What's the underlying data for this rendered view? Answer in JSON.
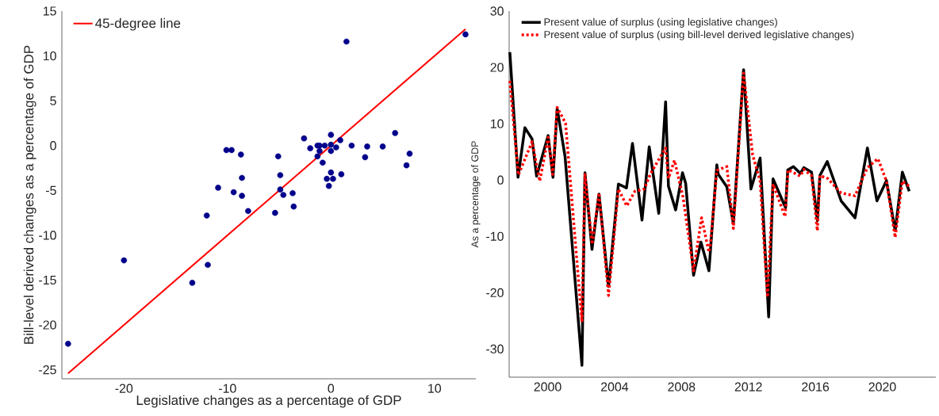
{
  "chart_data": [
    {
      "type": "scatter",
      "xlabel": "Legislative changes as a percentage of GDP",
      "ylabel": "Bill-level derived changes as a percentage of GDP",
      "xlim": [
        -26,
        14
      ],
      "ylim": [
        -26,
        15
      ],
      "xticks": [
        -20,
        -10,
        0,
        10
      ],
      "yticks": [
        -25,
        -20,
        -15,
        -10,
        -5,
        0,
        5,
        10,
        15
      ],
      "legend": "top left",
      "series": [
        {
          "type": "scatter",
          "color": "#00008b",
          "x": [
            1.5,
            13.0,
            -2.6,
            0.0,
            0.9,
            -1.3,
            -1.1,
            -0.6,
            0.0,
            0.5,
            -2.0,
            -1.1,
            0.0,
            2.0,
            3.5,
            5.0,
            6.2,
            3.3,
            7.6,
            7.3,
            -1.3,
            -0.8,
            0.0,
            -0.4,
            0.2,
            1.0,
            -0.2,
            -10.1,
            -9.6,
            -8.7,
            -5.1,
            -8.6,
            -4.9,
            -10.9,
            -9.4,
            -8.6,
            -4.9,
            -4.6,
            -3.7,
            -3.6,
            -8.0,
            -5.4,
            -12.0,
            -20.0,
            -11.9,
            -13.4,
            -25.4
          ],
          "values": [
            11.6,
            12.4,
            0.8,
            1.2,
            0.6,
            0.0,
            0.0,
            0.0,
            0.1,
            -0.2,
            -0.3,
            -0.6,
            -0.6,
            0.0,
            -0.1,
            -0.1,
            1.4,
            -1.3,
            -0.9,
            -2.2,
            -1.2,
            -1.9,
            -3.0,
            -3.7,
            -3.7,
            -3.2,
            -4.5,
            -0.5,
            -0.5,
            -1.0,
            -1.2,
            -3.6,
            -3.3,
            -4.7,
            -5.2,
            -5.6,
            -4.9,
            -5.5,
            -5.3,
            -6.8,
            -7.3,
            -7.5,
            -7.8,
            -12.8,
            -13.3,
            -15.3,
            -22.1
          ]
        },
        {
          "type": "line",
          "name": "45-degree line",
          "color": "#ff0000",
          "line_style": "solid",
          "x": [
            -25.4,
            13.0
          ],
          "values": [
            -25.4,
            13.0
          ]
        }
      ]
    },
    {
      "type": "line",
      "ylabel": "As a percentage of GDP",
      "xlim": [
        1997.7,
        2023.2
      ],
      "ylim": [
        -35,
        30
      ],
      "xticks": [
        2000,
        2004,
        2008,
        2012,
        2016,
        2020
      ],
      "yticks": [
        -30,
        -20,
        -10,
        0,
        10,
        20,
        30
      ],
      "legend": "top left",
      "series": [
        {
          "name": "Present value of surplus (using legislative changes)",
          "color": "#000000",
          "line_style": "solid",
          "x": [
            1997.74,
            1998.23,
            1998.64,
            1999.07,
            1999.34,
            2000.03,
            2000.32,
            2000.57,
            2001.04,
            2002.05,
            2002.23,
            2002.65,
            2003.07,
            2003.64,
            2004.23,
            2004.71,
            2005.07,
            2005.64,
            2006.07,
            2006.64,
            2007.05,
            2007.22,
            2007.65,
            2008.06,
            2008.25,
            2008.72,
            2009.16,
            2009.64,
            2010.11,
            2010.2,
            2010.71,
            2011.1,
            2011.71,
            2012.15,
            2012.7,
            2013.21,
            2013.47,
            2014.22,
            2014.35,
            2014.69,
            2015.1,
            2015.31,
            2015.77,
            2016.12,
            2016.27,
            2016.71,
            2017.54,
            2018.37,
            2019.11,
            2019.68,
            2020.25,
            2020.77,
            2021.2,
            2021.61
          ],
          "values": [
            22.7,
            0.5,
            9.3,
            7.3,
            0.7,
            7.9,
            0.5,
            12.7,
            4.2,
            -32.9,
            1.3,
            -12.3,
            -2.5,
            -18.9,
            -0.7,
            -1.4,
            6.5,
            -7.1,
            5.9,
            -5.9,
            13.9,
            -1.1,
            -5.3,
            1.3,
            -0.6,
            -16.9,
            -11.0,
            -16.1,
            2.7,
            1.0,
            -1.2,
            -7.7,
            19.6,
            -1.6,
            3.9,
            -24.3,
            0.2,
            -4.9,
            1.8,
            2.4,
            1.2,
            2.2,
            1.4,
            -7.2,
            0.8,
            3.3,
            -3.7,
            -6.7,
            5.7,
            -3.7,
            -0.1,
            -9.0,
            1.4,
            -2.0
          ]
        },
        {
          "name": "Present value of surplus (using bill-level derived legislative changes)",
          "color": "#ff0000",
          "line_style": "dotted",
          "x": [
            1997.74,
            1998.25,
            1999.07,
            1999.53,
            2000.03,
            2000.3,
            2000.57,
            2001.07,
            2002.05,
            2002.23,
            2002.66,
            2003.07,
            2003.64,
            2004.23,
            2004.73,
            2005.21,
            2005.77,
            2006.16,
            2007.05,
            2007.22,
            2007.58,
            2008.09,
            2008.72,
            2009.2,
            2009.64,
            2009.72,
            2010.11,
            2010.71,
            2011.1,
            2011.71,
            2012.25,
            2012.7,
            2013.14,
            2013.47,
            2014.19,
            2014.37,
            2015.1,
            2015.31,
            2015.77,
            2016.12,
            2016.27,
            2016.73,
            2017.54,
            2018.37,
            2019.11,
            2019.74,
            2020.25,
            2020.77,
            2021.2,
            2021.61
          ],
          "values": [
            17.6,
            0.9,
            6.8,
            -0.2,
            7.6,
            1.0,
            12.9,
            10.1,
            -25.2,
            1.0,
            -11.4,
            -2.3,
            -20.5,
            -1.6,
            -4.6,
            -2.0,
            -1.6,
            1.2,
            5.7,
            0.3,
            3.5,
            -3.0,
            -16.1,
            -6.7,
            -12.8,
            -11.6,
            1.7,
            2.4,
            -8.6,
            19.0,
            4.5,
            -0.2,
            -20.8,
            -0.7,
            -6.5,
            1.8,
            0.7,
            1.9,
            0.8,
            -9.0,
            0.8,
            0.3,
            -2.3,
            -2.8,
            2.2,
            3.8,
            -0.2,
            -10.2,
            -0.2,
            -1.1
          ]
        }
      ]
    }
  ]
}
